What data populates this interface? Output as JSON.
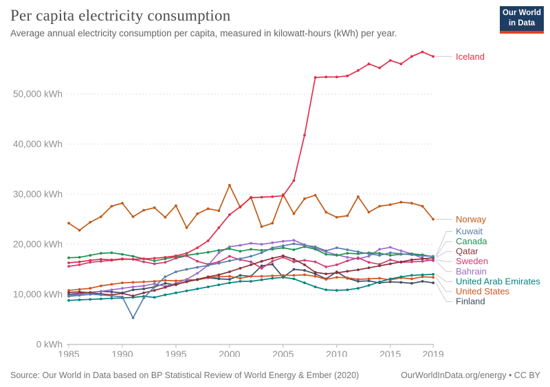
{
  "header": {
    "title": "Per capita electricity consumption",
    "subtitle": "Average annual electricity consumption per capita, measured in kilowatt-hours (kWh) per year.",
    "logo": {
      "line1": "Our World",
      "line2": "in Data",
      "bg_color": "#1d3d63",
      "accent_color": "#e0421d"
    }
  },
  "footer": {
    "source": "Source: Our World in Data based on BP Statistical Review of World Energy & Ember (2020)",
    "link": "OurWorldInData.org/energy • CC BY"
  },
  "chart_data": {
    "type": "line",
    "title": "Per capita electricity consumption",
    "unit": "kWh",
    "grid": "horizontal dashed",
    "legend_position": "right edge labels with leader lines",
    "ylim": [
      0,
      59000
    ],
    "x": [
      1985,
      1986,
      1987,
      1988,
      1989,
      1990,
      1991,
      1992,
      1993,
      1994,
      1995,
      1996,
      1997,
      1998,
      1999,
      2000,
      2001,
      2002,
      2003,
      2004,
      2005,
      2006,
      2007,
      2008,
      2009,
      2010,
      2011,
      2012,
      2013,
      2014,
      2015,
      2016,
      2017,
      2018,
      2019
    ],
    "xticks": [
      1985,
      1990,
      1995,
      2000,
      2005,
      2010,
      2015,
      2019
    ],
    "yticks": [
      {
        "value": 0,
        "label": "0 kWh"
      },
      {
        "value": 10000,
        "label": "10,000 kWh"
      },
      {
        "value": 20000,
        "label": "20,000 kWh"
      },
      {
        "value": 30000,
        "label": "30,000 kWh"
      },
      {
        "value": 40000,
        "label": "40,000 kWh"
      },
      {
        "value": 50000,
        "label": "50,000 kWh"
      }
    ],
    "series": [
      {
        "name": "Iceland",
        "color": "#e02e49",
        "label_row": "end",
        "values": [
          16300,
          16500,
          16800,
          17000,
          16900,
          17100,
          17000,
          17100,
          17200,
          17400,
          17700,
          18200,
          19300,
          20700,
          23300,
          25900,
          27500,
          29300,
          29400,
          29500,
          29700,
          32700,
          41800,
          53300,
          53400,
          53400,
          53600,
          54700,
          56000,
          55200,
          56700,
          56000,
          57500,
          58400,
          57500
        ]
      },
      {
        "name": "Norway",
        "color": "#c05917",
        "label_row": "end",
        "values": [
          24200,
          22800,
          24400,
          25500,
          27600,
          28200,
          25500,
          26800,
          27300,
          25400,
          27700,
          23300,
          26100,
          27100,
          26700,
          31800,
          27400,
          29400,
          23500,
          24200,
          29900,
          26100,
          29100,
          29800,
          26400,
          25400,
          25700,
          29500,
          26400,
          27600,
          27900,
          28400,
          28200,
          27600,
          25000
        ]
      },
      {
        "name": "Kuwait",
        "color": "#577ca9",
        "label_row": 0,
        "values": [
          9600,
          9800,
          10000,
          9900,
          9700,
          9500,
          5300,
          9300,
          11500,
          13500,
          14500,
          15000,
          15400,
          15800,
          16200,
          16700,
          17100,
          17600,
          18300,
          19300,
          19700,
          20100,
          19800,
          19500,
          18700,
          19300,
          18900,
          18500,
          18100,
          17800,
          18300,
          18100,
          17900,
          17700,
          17600
        ]
      },
      {
        "name": "Canada",
        "color": "#1f9152",
        "label_row": 1,
        "values": [
          17300,
          17400,
          17800,
          18200,
          18300,
          18000,
          17600,
          17100,
          16700,
          17100,
          17500,
          17800,
          18100,
          18400,
          18800,
          19100,
          18600,
          19000,
          18800,
          19000,
          19300,
          18900,
          19500,
          19000,
          18000,
          17800,
          18200,
          18100,
          18300,
          18200,
          17800,
          18000,
          18100,
          17900,
          17500
        ]
      },
      {
        "name": "Qatar",
        "color": "#883039",
        "label_row": 2,
        "values": [
          10400,
          10500,
          10300,
          10100,
          9900,
          10200,
          9700,
          10300,
          10800,
          11400,
          12000,
          12500,
          13000,
          13500,
          13900,
          14500,
          15200,
          15900,
          16600,
          17200,
          17700,
          17000,
          15900,
          14400,
          14100,
          14300,
          14600,
          14900,
          15300,
          15700,
          16100,
          16500,
          16900,
          17100,
          17300
        ]
      },
      {
        "name": "Sweden",
        "color": "#d03a76",
        "label_row": 3,
        "values": [
          15600,
          15900,
          16400,
          16600,
          16800,
          17000,
          17000,
          16500,
          16100,
          16400,
          17200,
          17700,
          16600,
          16000,
          16500,
          17600,
          16900,
          16500,
          15200,
          16600,
          17400,
          16500,
          16800,
          16500,
          15500,
          15900,
          16700,
          17300,
          16400,
          16000,
          16900,
          16400,
          16500,
          16600,
          16900
        ]
      },
      {
        "name": "Bahrain",
        "color": "#9a6dc7",
        "label_row": 4,
        "values": [
          9700,
          10000,
          10300,
          10600,
          10900,
          11200,
          11500,
          11700,
          12100,
          11600,
          12200,
          13000,
          14200,
          15800,
          18300,
          19500,
          19800,
          20200,
          20000,
          20300,
          20600,
          20800,
          19900,
          19200,
          18500,
          17900,
          17400,
          17100,
          17600,
          19000,
          19400,
          18700,
          18100,
          17200,
          16700
        ]
      },
      {
        "name": "United Arab Emirates",
        "color": "#00847e",
        "label_row": 5,
        "values": [
          8800,
          8900,
          9000,
          9100,
          9200,
          9300,
          9400,
          9600,
          9400,
          9900,
          10300,
          10700,
          11100,
          11500,
          11900,
          12300,
          12600,
          12600,
          12900,
          13200,
          13400,
          13100,
          12300,
          11500,
          10900,
          10800,
          10900,
          11200,
          11800,
          12500,
          13100,
          13500,
          13800,
          13900,
          14000
        ]
      },
      {
        "name": "United States",
        "color": "#d05523",
        "label_row": 6,
        "values": [
          10800,
          11000,
          11200,
          11700,
          12000,
          12300,
          12400,
          12500,
          12600,
          12800,
          12700,
          12900,
          12900,
          13300,
          13500,
          13600,
          13200,
          13600,
          13600,
          13700,
          13800,
          13800,
          13900,
          13600,
          13000,
          13400,
          13300,
          13000,
          13100,
          13200,
          12900,
          13300,
          13100,
          13500,
          13400
        ]
      },
      {
        "name": "Finland",
        "color": "#3d4e66",
        "label_row": 7,
        "values": [
          10000,
          10200,
          10400,
          10600,
          10500,
          10300,
          10900,
          11100,
          11500,
          12200,
          11900,
          12600,
          12900,
          13300,
          13100,
          13000,
          13800,
          13600,
          15700,
          16000,
          13400,
          15000,
          14800,
          14100,
          13100,
          14500,
          13200,
          12600,
          12700,
          12300,
          12500,
          12400,
          12200,
          12600,
          12300
        ]
      }
    ]
  }
}
